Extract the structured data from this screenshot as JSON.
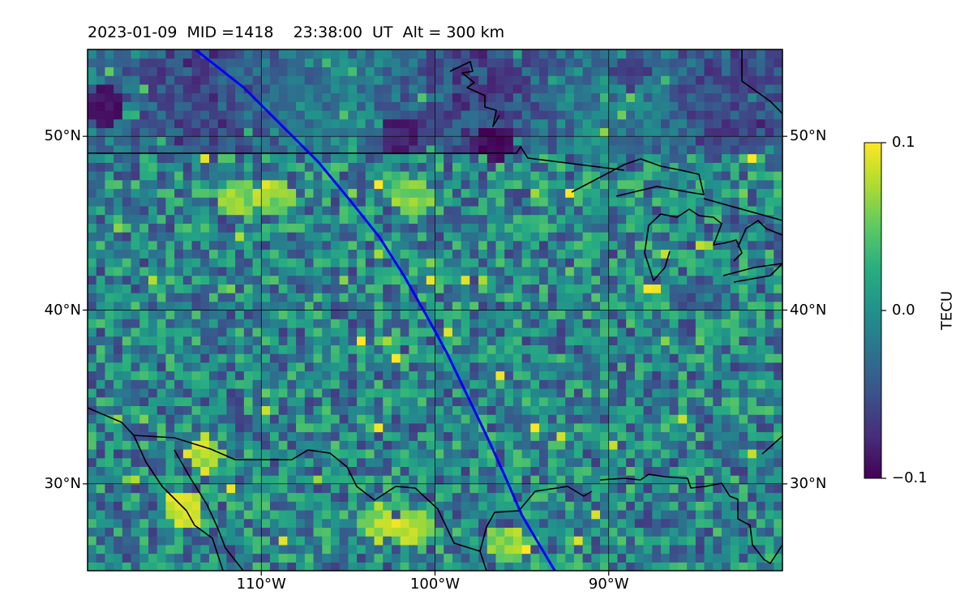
{
  "title": "2023-01-09  MID =1418    23:38:00  UT  Alt = 300 km",
  "chart_data": {
    "type": "heatmap",
    "title": "2023-01-09  MID =1418    23:38:00  UT  Alt = 300 km",
    "date": "2023-01-09",
    "mid": 1418,
    "time_ut": "23:38:00",
    "altitude": "300 km",
    "x_range_deg": [
      -120,
      -80
    ],
    "y_range_deg": [
      25,
      55
    ],
    "x_ticks": [
      {
        "value": -110,
        "label": "110°W"
      },
      {
        "value": -100,
        "label": "100°W"
      },
      {
        "value": -90,
        "label": "90°W"
      }
    ],
    "y_ticks": [
      {
        "value": 30,
        "label": "30°N"
      },
      {
        "value": 40,
        "label": "40°N"
      },
      {
        "value": 50,
        "label": "50°N"
      }
    ],
    "grid": true,
    "colorbar": {
      "label": "TECU",
      "min": -0.1,
      "max": 0.1,
      "ticks": [
        {
          "value": 0.1,
          "label": "0.1"
        },
        {
          "value": 0.0,
          "label": "0.0"
        },
        {
          "value": -0.1,
          "label": "−0.1"
        }
      ],
      "colormap": "viridis",
      "placement": "right"
    },
    "track_line": {
      "color": "#0000ff",
      "points": [
        [
          -113.8,
          55
        ],
        [
          -111.0,
          52.8
        ],
        [
          -108.7,
          50.5
        ],
        [
          -106.7,
          48.5
        ],
        [
          -104.8,
          46.2
        ],
        [
          -103.2,
          44.2
        ],
        [
          -101.8,
          42.0
        ],
        [
          -100.5,
          39.7
        ],
        [
          -99.3,
          37.5
        ],
        [
          -98.1,
          35.0
        ],
        [
          -97.0,
          32.7
        ],
        [
          -96.0,
          30.5
        ],
        [
          -95.0,
          28.2
        ],
        [
          -94.0,
          26.5
        ],
        [
          -93.1,
          25
        ]
      ]
    },
    "coastlines_color": "#000000",
    "notable_regions": [
      {
        "lon": -113.5,
        "lat": 31.5,
        "value": 0.1
      },
      {
        "lon": -114.7,
        "lat": 28.3,
        "value": 0.1
      },
      {
        "lon": -103.5,
        "lat": 27.5,
        "value": 0.09
      },
      {
        "lon": -101.5,
        "lat": 27.2,
        "value": 0.09
      },
      {
        "lon": -109.5,
        "lat": 46.2,
        "value": 0.08
      },
      {
        "lon": -111.5,
        "lat": 46.4,
        "value": 0.08
      },
      {
        "lon": -101.5,
        "lat": 46.3,
        "value": 0.08
      },
      {
        "lon": -96.2,
        "lat": 26.3,
        "value": 0.08
      },
      {
        "lon": -119.2,
        "lat": 51.5,
        "value": -0.1
      },
      {
        "lon": -96.7,
        "lat": 49.4,
        "value": -0.1
      },
      {
        "lon": -102.4,
        "lat": 49.9,
        "value": -0.09
      },
      {
        "lon": -96.0,
        "lat": 53.0,
        "value": -0.07
      },
      {
        "lon": -89.0,
        "lat": 53.5,
        "value": -0.07
      },
      {
        "lon": -82.5,
        "lat": 53.0,
        "value": -0.06
      }
    ]
  }
}
